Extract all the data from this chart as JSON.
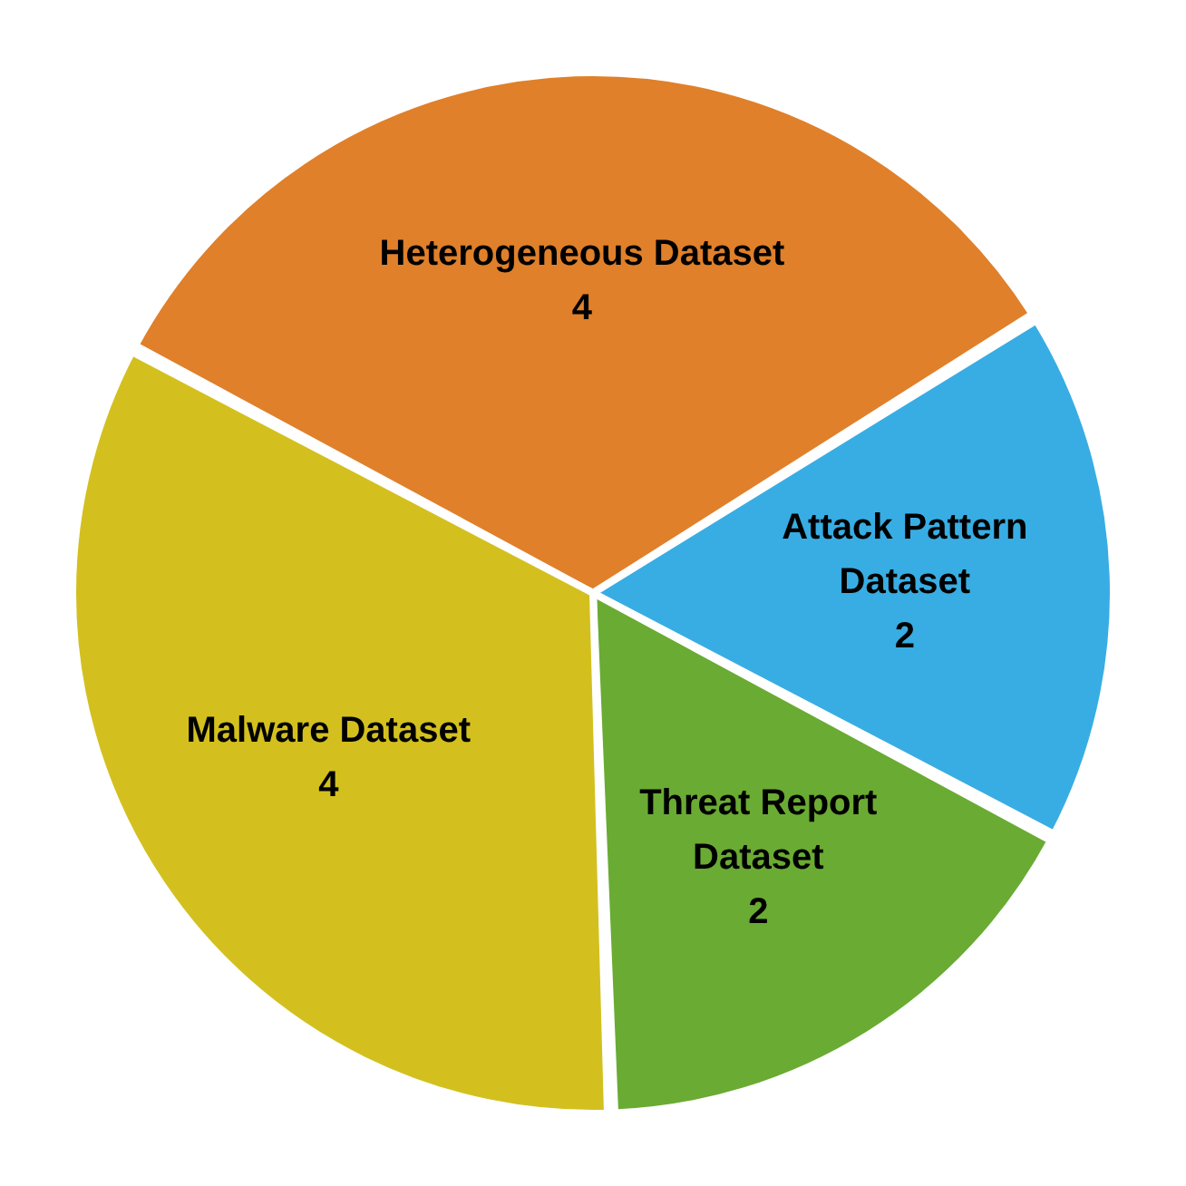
{
  "chart_data": {
    "type": "pie",
    "categories": [
      "Heterogeneous Dataset",
      "Attack Pattern Dataset",
      "Threat Report Dataset",
      "Malware Dataset"
    ],
    "values": [
      4,
      2,
      2,
      4
    ],
    "colors": [
      "#e0802a",
      "#38ade3",
      "#6aab33",
      "#d3c01f"
    ],
    "data_labels": true
  }
}
